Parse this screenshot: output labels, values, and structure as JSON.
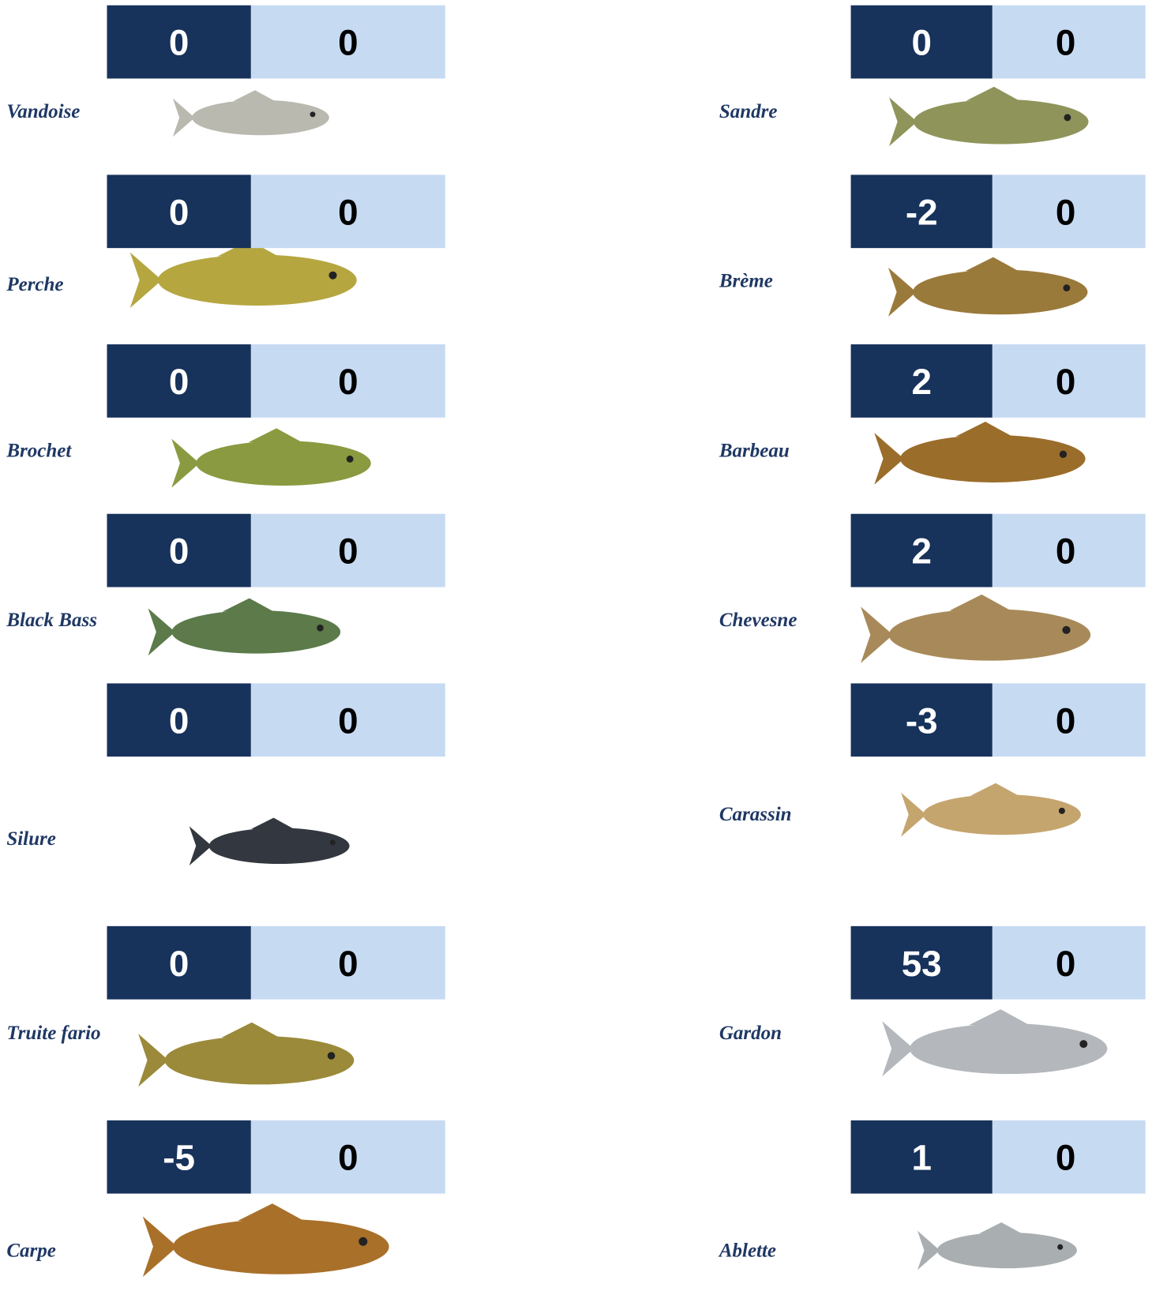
{
  "left": [
    {
      "name": "Vandoise",
      "score_a": 0,
      "score_b": 0
    },
    {
      "name": "Perche",
      "score_a": 0,
      "score_b": 0
    },
    {
      "name": "Brochet",
      "score_a": 0,
      "score_b": 0
    },
    {
      "name": "Black Bass",
      "score_a": 0,
      "score_b": 0
    },
    {
      "name": "Silure",
      "score_a": 0,
      "score_b": 0
    },
    {
      "name": "Truite fario",
      "score_a": 0,
      "score_b": 0
    },
    {
      "name": "Carpe",
      "score_a": -5,
      "score_b": 0
    }
  ],
  "right": [
    {
      "name": "Sandre",
      "score_a": 0,
      "score_b": 0
    },
    {
      "name": "Brème",
      "score_a": -2,
      "score_b": 0
    },
    {
      "name": "Barbeau",
      "score_a": 2,
      "score_b": 0
    },
    {
      "name": "Chevesne",
      "score_a": 2,
      "score_b": 0
    },
    {
      "name": "Carassin",
      "score_a": -3,
      "score_b": 0
    },
    {
      "name": "Gardon",
      "score_a": 53,
      "score_b": 0
    },
    {
      "name": "Ablette",
      "score_a": 1,
      "score_b": 0
    }
  ]
}
